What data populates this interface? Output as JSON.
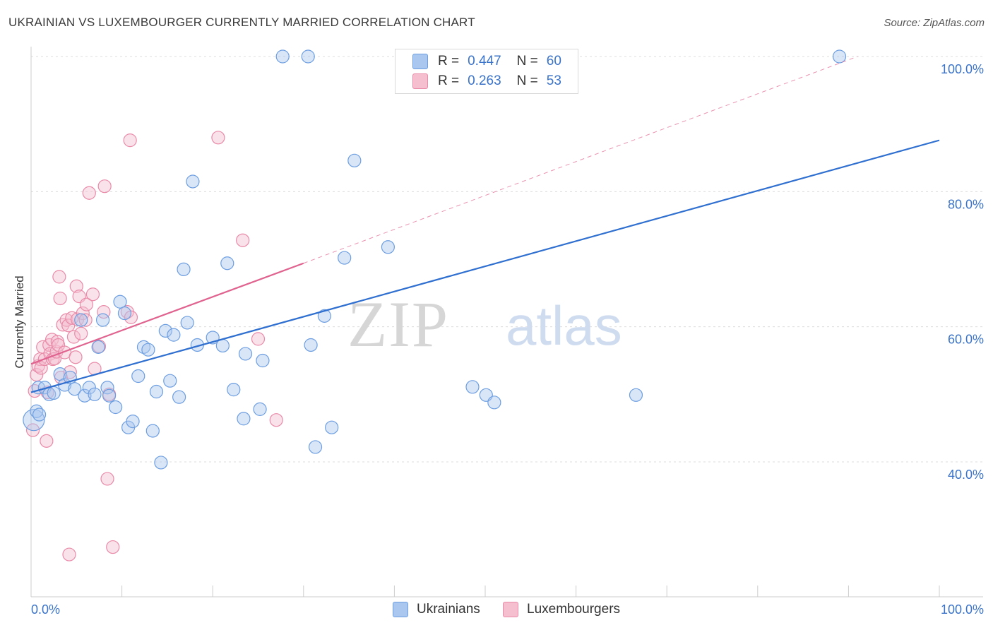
{
  "title": "UKRAINIAN VS LUXEMBOURGER CURRENTLY MARRIED CORRELATION CHART",
  "source": "Source: ZipAtlas.com",
  "watermark": {
    "zip": "ZIP",
    "atlas": "atlas"
  },
  "legend": {
    "rows": [
      {
        "r_label": "R =",
        "r_value": "0.447",
        "n_label": "N =",
        "n_value": "60"
      },
      {
        "r_label": "R =",
        "r_value": "0.263",
        "n_label": "N =",
        "n_value": "53"
      }
    ]
  },
  "bottom_legend": {
    "ukrainians": "Ukrainians",
    "luxembourgers": "Luxembourgers"
  },
  "colors": {
    "blue_fill": "#aac7ef",
    "blue_stroke": "#6d9ee0",
    "blue_line": "#2f6fd0",
    "pink_fill": "#f5bfd0",
    "pink_stroke": "#e88aa8",
    "pink_line": "#e0628e",
    "axis_text": "#3a73c9",
    "grid": "#dcdcdc"
  },
  "chart_data": {
    "type": "scatter",
    "title": "UKRAINIAN VS LUXEMBOURGER CURRENTLY MARRIED CORRELATION CHART",
    "xlabel": "",
    "ylabel": "Currently Married",
    "xlim": [
      0,
      100
    ],
    "ylim": [
      20,
      100
    ],
    "x_tick_labels": [
      "0.0%",
      "100.0%"
    ],
    "y_ticks": [
      40,
      60,
      80,
      100
    ],
    "y_tick_labels": [
      "40.0%",
      "60.0%",
      "80.0%",
      "100.0%"
    ],
    "grid": true,
    "series": [
      {
        "name": "Ukrainians",
        "R": 0.447,
        "N": 60,
        "trend": {
          "x": [
            0,
            100
          ],
          "y": [
            50.3,
            87.6
          ]
        },
        "points": [
          [
            0.3,
            46.2
          ],
          [
            0.6,
            47.5
          ],
          [
            0.8,
            51.0
          ],
          [
            1.5,
            51.0
          ],
          [
            2.0,
            50.0
          ],
          [
            2.5,
            50.2
          ],
          [
            3.2,
            53.0
          ],
          [
            3.7,
            51.4
          ],
          [
            4.3,
            52.5
          ],
          [
            4.8,
            50.8
          ],
          [
            5.5,
            61.0
          ],
          [
            5.9,
            49.8
          ],
          [
            6.4,
            51.0
          ],
          [
            7.0,
            50.0
          ],
          [
            7.4,
            57.0
          ],
          [
            7.9,
            61.0
          ],
          [
            8.4,
            51.0
          ],
          [
            8.6,
            49.8
          ],
          [
            9.3,
            48.1
          ],
          [
            9.8,
            63.7
          ],
          [
            10.3,
            62.0
          ],
          [
            10.7,
            45.1
          ],
          [
            11.2,
            46.0
          ],
          [
            11.8,
            52.7
          ],
          [
            12.4,
            57.0
          ],
          [
            12.9,
            56.6
          ],
          [
            13.4,
            44.6
          ],
          [
            13.8,
            50.4
          ],
          [
            14.3,
            39.9
          ],
          [
            14.8,
            59.4
          ],
          [
            15.3,
            52.0
          ],
          [
            15.7,
            58.8
          ],
          [
            16.3,
            49.6
          ],
          [
            16.8,
            68.5
          ],
          [
            17.2,
            60.6
          ],
          [
            17.8,
            81.5
          ],
          [
            18.3,
            57.3
          ],
          [
            20.0,
            58.4
          ],
          [
            21.1,
            57.2
          ],
          [
            21.6,
            69.4
          ],
          [
            22.3,
            50.7
          ],
          [
            23.4,
            46.4
          ],
          [
            23.6,
            56.0
          ],
          [
            25.2,
            47.8
          ],
          [
            25.5,
            55.0
          ],
          [
            27.7,
            100.0
          ],
          [
            30.5,
            100.0
          ],
          [
            30.8,
            57.3
          ],
          [
            31.3,
            42.2
          ],
          [
            32.3,
            61.6
          ],
          [
            33.1,
            45.1
          ],
          [
            34.5,
            70.2
          ],
          [
            35.6,
            84.6
          ],
          [
            39.3,
            71.8
          ],
          [
            48.6,
            51.1
          ],
          [
            50.1,
            49.9
          ],
          [
            51.0,
            48.8
          ],
          [
            66.6,
            49.9
          ],
          [
            89.0,
            100.0
          ],
          [
            0.9,
            47.0
          ]
        ]
      },
      {
        "name": "Luxembourgers",
        "R": 0.263,
        "N": 53,
        "trend": {
          "x": [
            0,
            30
          ],
          "y": [
            54.5,
            69.4
          ],
          "dashed_to": {
            "x": 91,
            "y": 100
          }
        },
        "points": [
          [
            0.2,
            44.7
          ],
          [
            0.4,
            50.5
          ],
          [
            0.6,
            52.9
          ],
          [
            0.8,
            54.2
          ],
          [
            1.0,
            55.2
          ],
          [
            1.1,
            53.9
          ],
          [
            1.3,
            57.0
          ],
          [
            1.5,
            55.2
          ],
          [
            1.7,
            43.1
          ],
          [
            1.8,
            50.3
          ],
          [
            2.0,
            57.3
          ],
          [
            2.1,
            56.0
          ],
          [
            2.3,
            58.1
          ],
          [
            2.4,
            55.2
          ],
          [
            2.6,
            55.3
          ],
          [
            2.8,
            56.3
          ],
          [
            2.9,
            57.8
          ],
          [
            3.0,
            57.3
          ],
          [
            3.1,
            67.4
          ],
          [
            3.2,
            64.2
          ],
          [
            3.3,
            52.5
          ],
          [
            3.5,
            60.3
          ],
          [
            3.7,
            56.2
          ],
          [
            3.9,
            61.0
          ],
          [
            4.1,
            60.2
          ],
          [
            4.3,
            53.3
          ],
          [
            4.5,
            61.3
          ],
          [
            4.7,
            58.5
          ],
          [
            4.9,
            55.5
          ],
          [
            5.0,
            66.0
          ],
          [
            5.1,
            61.1
          ],
          [
            5.3,
            64.5
          ],
          [
            5.5,
            59.0
          ],
          [
            5.7,
            62.0
          ],
          [
            6.0,
            61.0
          ],
          [
            6.1,
            63.3
          ],
          [
            6.4,
            79.8
          ],
          [
            6.8,
            64.8
          ],
          [
            7.0,
            53.8
          ],
          [
            7.5,
            57.1
          ],
          [
            8.0,
            62.2
          ],
          [
            8.1,
            80.8
          ],
          [
            8.4,
            37.5
          ],
          [
            8.6,
            50.0
          ],
          [
            9.0,
            27.4
          ],
          [
            10.6,
            62.2
          ],
          [
            10.9,
            87.6
          ],
          [
            11.0,
            61.4
          ],
          [
            20.6,
            88.0
          ],
          [
            23.3,
            72.8
          ],
          [
            25.0,
            58.2
          ],
          [
            27.0,
            46.2
          ],
          [
            4.2,
            26.3
          ]
        ]
      }
    ]
  }
}
